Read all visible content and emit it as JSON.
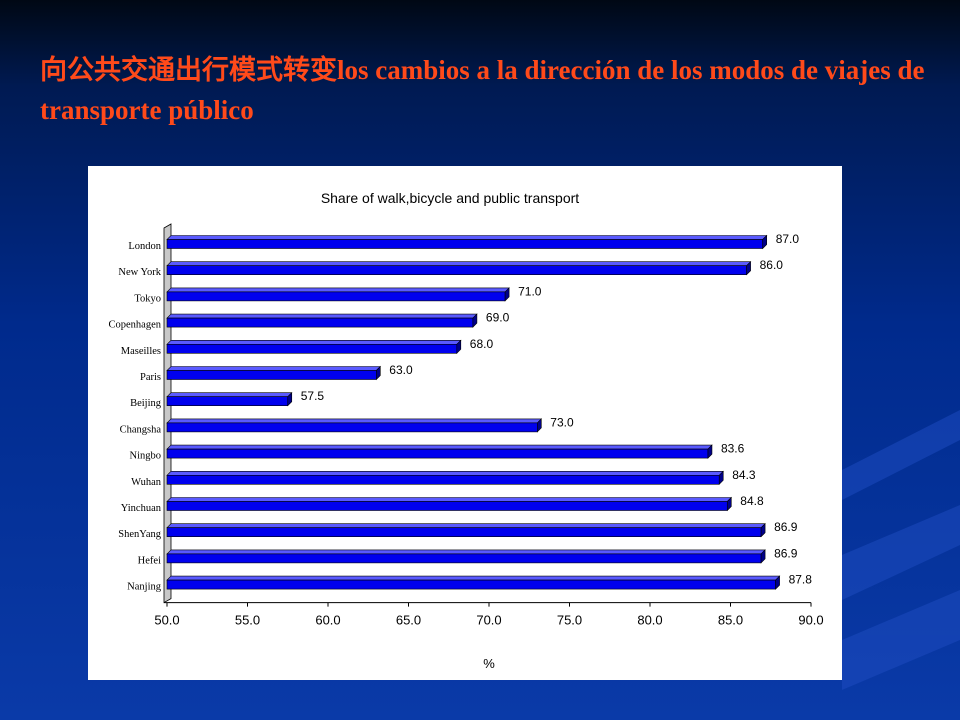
{
  "slide": {
    "title_cn": "向公共交通出行模式转变",
    "title_es": "los cambios a la dirección de los modos de viajes de transporte público"
  },
  "chart_data": {
    "type": "bar",
    "orientation": "horizontal",
    "title": "Share of walk,bicycle and public transport",
    "xlabel": "%",
    "ylabel": "",
    "xlim": [
      50.0,
      90.0
    ],
    "x_ticks": [
      "50.0",
      "55.0",
      "60.0",
      "65.0",
      "70.0",
      "75.0",
      "80.0",
      "85.0",
      "90.0"
    ],
    "categories": [
      "London",
      "New York",
      "Tokyo",
      "Copenhagen",
      "Maseilles",
      "Paris",
      "Beijing",
      "Changsha",
      "Ningbo",
      "Wuhan",
      "Yinchuan",
      "ShenYang",
      "Hefei",
      "Nanjing"
    ],
    "values": [
      87.0,
      86.0,
      71.0,
      69.0,
      68.0,
      63.0,
      57.5,
      73.0,
      83.6,
      84.3,
      84.8,
      86.9,
      86.9,
      87.8
    ],
    "data_labels": [
      "87.0",
      "86.0",
      "71.0",
      "69.0",
      "68.0",
      "63.0",
      "57.5",
      "73.0",
      "83.6",
      "84.3",
      "84.8",
      "86.9",
      "86.9",
      "87.8"
    ],
    "bar_color": "#0000ee",
    "grid": false
  }
}
